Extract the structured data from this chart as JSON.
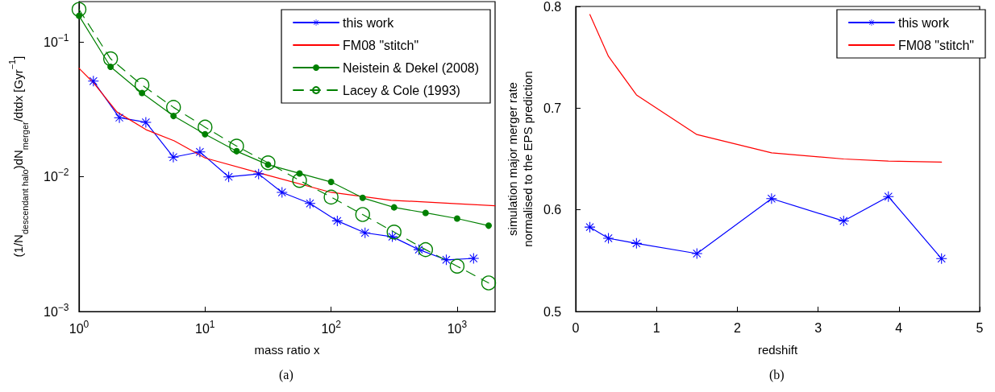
{
  "chart_data": [
    {
      "type": "line",
      "xlabel": "mass ratio x",
      "ylabel": "(1/N$_{descendant halo}$)dN$_{merger}$/dtdx [Gyr$^{−1}$]",
      "log": "xy",
      "xlim": [
        1,
        2000
      ],
      "ylim": [
        0.001,
        0.2
      ],
      "xticks": [
        {
          "value": 1,
          "label": "10$^{0}$"
        },
        {
          "value": 10,
          "label": "10$^{1}$"
        },
        {
          "value": 100,
          "label": "10$^{2}$"
        },
        {
          "value": 1000,
          "label": "10$^{3}$"
        }
      ],
      "yticks": [
        {
          "value": 0.001,
          "label": "10$^{−3}$"
        },
        {
          "value": 0.01,
          "label": "10$^{−2}$"
        },
        {
          "value": 0.1,
          "label": "10$^{−1}$"
        }
      ],
      "grid": false,
      "legend": "top right",
      "annotations": [
        "(a)"
      ],
      "series": [
        {
          "name": "this work",
          "color": "#0000ff",
          "marker": "star",
          "line_style": "solid",
          "x": [
            1.3,
            2.09,
            3.39,
            5.6,
            9.1,
            15.4,
            26.6,
            40.8,
            68,
            112,
            186,
            306,
            497,
            820,
            1350
          ],
          "values": [
            0.0514,
            0.0275,
            0.0254,
            0.014,
            0.0153,
            0.01,
            0.0105,
            0.00767,
            0.00634,
            0.00471,
            0.00384,
            0.00359,
            0.00288,
            0.00242,
            0.00248
          ]
        },
        {
          "name": "FM08 \"stitch\"",
          "color": "#ff0000",
          "marker": "none",
          "line_style": "solid",
          "x": [
            1,
            1.3,
            2,
            3.4,
            5.7,
            10,
            30,
            100,
            300,
            1000,
            2000
          ],
          "values": [
            0.0639,
            0.05,
            0.0303,
            0.0224,
            0.0185,
            0.0138,
            0.0104,
            0.00767,
            0.0067,
            0.00632,
            0.0061
          ]
        },
        {
          "name": "Neistein & Dekel (2008)",
          "color": "#008000",
          "marker": "circle",
          "line_style": "solid",
          "x": [
            1,
            1.78,
            3.16,
            5.62,
            10,
            17.8,
            31.6,
            56.2,
            100,
            178,
            316,
            562,
            1000,
            1778
          ],
          "values": [
            0.157,
            0.0656,
            0.0419,
            0.0283,
            0.0207,
            0.0155,
            0.0123,
            0.0106,
            0.00916,
            0.00698,
            0.00593,
            0.0054,
            0.0049,
            0.00434
          ]
        },
        {
          "name": "Lacey & Cole (1993)",
          "color": "#008000",
          "marker": "circle",
          "line_style": "dashed",
          "x": [
            1,
            1.78,
            3.16,
            5.62,
            10,
            17.8,
            31.6,
            56.2,
            100,
            178,
            316,
            562,
            1000,
            1778
          ],
          "values": [
            0.175,
            0.0752,
            0.048,
            0.0328,
            0.0234,
            0.0169,
            0.0127,
            0.0094,
            0.00707,
            0.00525,
            0.00389,
            0.00288,
            0.00217,
            0.00163
          ]
        }
      ]
    },
    {
      "type": "line",
      "xlabel": "redshift",
      "ylabel": "simulation major merger rate\nnormalised to the EPS prediction",
      "xlim": [
        0,
        5
      ],
      "ylim": [
        0.5,
        0.8
      ],
      "xticks": [
        0,
        1,
        2,
        3,
        4,
        5
      ],
      "yticks": [
        0.5,
        0.6,
        0.7,
        0.8
      ],
      "grid": false,
      "legend": "top right",
      "annotations": [
        "(b)"
      ],
      "series": [
        {
          "name": "this work",
          "color": "#0000ff",
          "marker": "star",
          "line_style": "solid",
          "x": [
            0.175,
            0.405,
            0.752,
            1.5,
            2.424,
            3.316,
            3.87,
            4.528
          ],
          "values": [
            0.583,
            0.572,
            0.567,
            0.557,
            0.611,
            0.589,
            0.613,
            0.552
          ]
        },
        {
          "name": "FM08 \"stitch\"",
          "color": "#ff0000",
          "marker": "none",
          "line_style": "solid",
          "x": [
            0.175,
            0.405,
            0.752,
            1.5,
            2.424,
            3.316,
            3.87,
            4.528
          ],
          "values": [
            0.792,
            0.751,
            0.713,
            0.674,
            0.656,
            0.65,
            0.648,
            0.647
          ]
        }
      ]
    }
  ]
}
